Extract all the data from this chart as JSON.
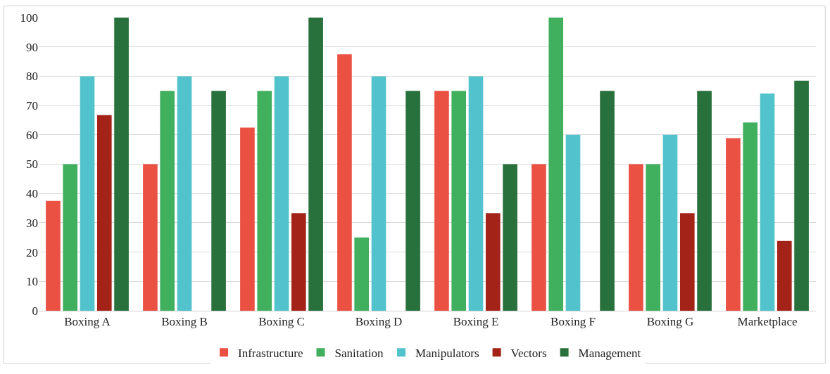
{
  "chart_data": {
    "type": "bar",
    "categories": [
      "Boxing A",
      "Boxing B",
      "Boxing C",
      "Boxing D",
      "Boxing E",
      "Boxing F",
      "Boxing G",
      "Marketplace"
    ],
    "series": [
      {
        "name": "Infrastructure",
        "color": "#ea5143",
        "values": [
          37.5,
          50,
          62.5,
          87.5,
          75,
          50,
          50,
          58.9
        ]
      },
      {
        "name": "Sanitation",
        "color": "#40b05f",
        "values": [
          50,
          75,
          75,
          25,
          75,
          100,
          50,
          64.2
        ]
      },
      {
        "name": "Manipulators",
        "color": "#52c3cc",
        "values": [
          80,
          80,
          80,
          80,
          80,
          60,
          60,
          74.1
        ]
      },
      {
        "name": "Vectors",
        "color": "#a42318",
        "values": [
          66.7,
          0,
          33.3,
          0,
          33.3,
          0,
          33.3,
          23.8
        ]
      },
      {
        "name": "Management",
        "color": "#28703c",
        "values": [
          100,
          75,
          100,
          75,
          50,
          75,
          75,
          78.5
        ]
      }
    ],
    "ylim": [
      0,
      100
    ],
    "yticks": [
      0,
      10,
      20,
      30,
      40,
      50,
      60,
      70,
      80,
      90,
      100
    ],
    "grid": "y",
    "legend": "bottom"
  }
}
